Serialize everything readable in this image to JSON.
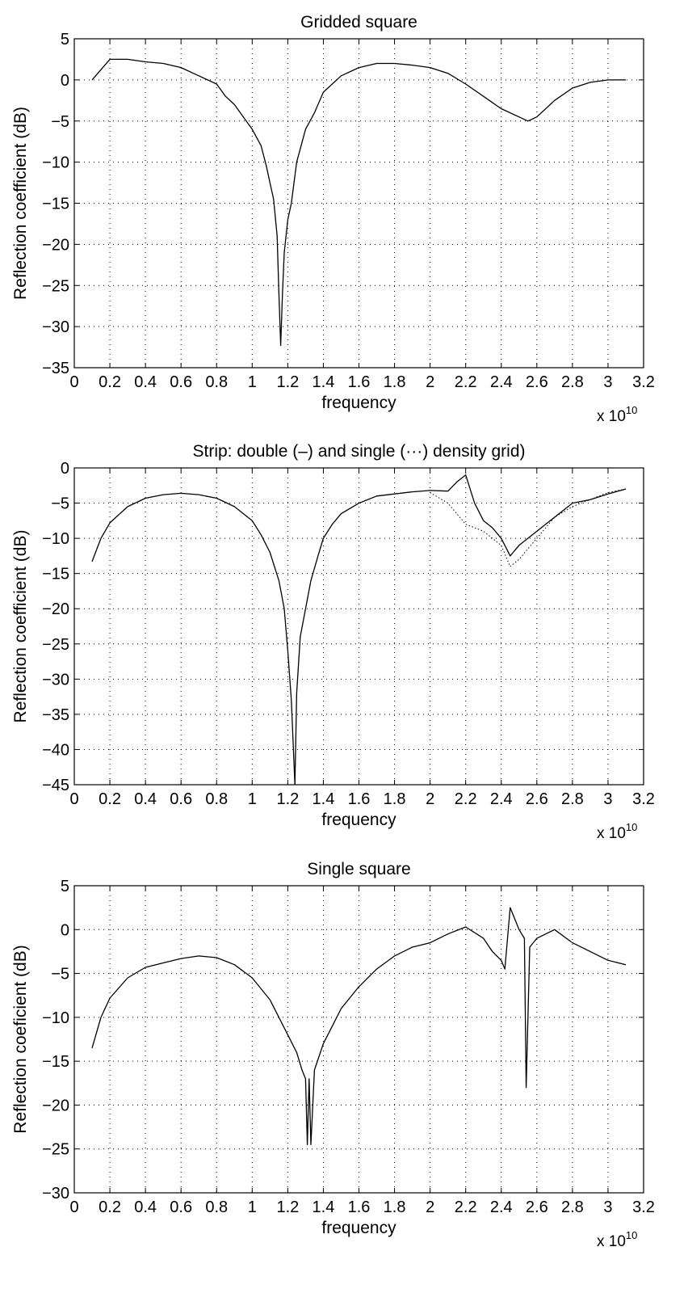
{
  "chart_data": [
    {
      "type": "line",
      "title": "Gridded square",
      "xlabel": "frequency",
      "ylabel": "Reflection coefficient (dB)",
      "x_multiplier": "x 10",
      "x_multiplier_exponent": "10",
      "xlim": [
        0,
        3.2
      ],
      "ylim": [
        -35,
        5
      ],
      "xticks": [
        "0",
        "0.2",
        "0.4",
        "0.6",
        "0.8",
        "1",
        "1.2",
        "1.4",
        "1.6",
        "1.8",
        "2",
        "2.2",
        "2.4",
        "2.6",
        "2.8",
        "3",
        "3.2"
      ],
      "yticks": [
        "5",
        "0",
        "−5",
        "−10",
        "−15",
        "−20",
        "−25",
        "−30",
        "−35"
      ],
      "grid": true,
      "series": [
        {
          "style": "solid",
          "points": [
            [
              0.1,
              0
            ],
            [
              0.2,
              2.5
            ],
            [
              0.3,
              2.5
            ],
            [
              0.4,
              2.2
            ],
            [
              0.5,
              2
            ],
            [
              0.6,
              1.5
            ],
            [
              0.7,
              0.5
            ],
            [
              0.8,
              -0.5
            ],
            [
              0.85,
              -2
            ],
            [
              0.9,
              -3
            ],
            [
              0.95,
              -4.5
            ],
            [
              1.0,
              -6
            ],
            [
              1.05,
              -8
            ],
            [
              1.08,
              -10.5
            ],
            [
              1.1,
              -12.5
            ],
            [
              1.12,
              -14.5
            ],
            [
              1.14,
              -19
            ],
            [
              1.15,
              -26
            ],
            [
              1.16,
              -32.3
            ],
            [
              1.17,
              -26
            ],
            [
              1.18,
              -21
            ],
            [
              1.2,
              -17
            ],
            [
              1.22,
              -15
            ],
            [
              1.25,
              -10
            ],
            [
              1.3,
              -6
            ],
            [
              1.35,
              -4
            ],
            [
              1.4,
              -1.5
            ],
            [
              1.5,
              0.5
            ],
            [
              1.6,
              1.5
            ],
            [
              1.7,
              2
            ],
            [
              1.8,
              2
            ],
            [
              1.9,
              1.8
            ],
            [
              2.0,
              1.5
            ],
            [
              2.1,
              0.8
            ],
            [
              2.2,
              -0.5
            ],
            [
              2.3,
              -2
            ],
            [
              2.4,
              -3.5
            ],
            [
              2.5,
              -4.5
            ],
            [
              2.55,
              -5
            ],
            [
              2.6,
              -4.5
            ],
            [
              2.7,
              -2.5
            ],
            [
              2.8,
              -1
            ],
            [
              2.9,
              -0.3
            ],
            [
              3.0,
              0
            ],
            [
              3.1,
              0
            ]
          ]
        }
      ]
    },
    {
      "type": "line",
      "title": "Strip: double (–) and single (···) density grid)",
      "xlabel": "frequency",
      "ylabel": "Reflection coefficient (dB)",
      "x_multiplier": "x 10",
      "x_multiplier_exponent": "10",
      "xlim": [
        0,
        3.2
      ],
      "ylim": [
        -45,
        0
      ],
      "xticks": [
        "0",
        "0.2",
        "0.4",
        "0.6",
        "0.8",
        "1",
        "1.2",
        "1.4",
        "1.6",
        "1.8",
        "2",
        "2.2",
        "2.4",
        "2.6",
        "2.8",
        "3",
        "3.2"
      ],
      "yticks": [
        "0",
        "−5",
        "−10",
        "−15",
        "−20",
        "−25",
        "−30",
        "−35",
        "−40",
        "−45"
      ],
      "grid": true,
      "series": [
        {
          "style": "solid",
          "points": [
            [
              0.1,
              -13.3
            ],
            [
              0.15,
              -10
            ],
            [
              0.2,
              -7.8
            ],
            [
              0.3,
              -5.5
            ],
            [
              0.4,
              -4.3
            ],
            [
              0.5,
              -3.8
            ],
            [
              0.6,
              -3.6
            ],
            [
              0.7,
              -3.8
            ],
            [
              0.8,
              -4.3
            ],
            [
              0.9,
              -5.5
            ],
            [
              1.0,
              -7.5
            ],
            [
              1.05,
              -9.5
            ],
            [
              1.1,
              -12
            ],
            [
              1.15,
              -16
            ],
            [
              1.18,
              -20
            ],
            [
              1.2,
              -26
            ],
            [
              1.22,
              -33
            ],
            [
              1.24,
              -45
            ],
            [
              1.25,
              -32
            ],
            [
              1.27,
              -24
            ],
            [
              1.3,
              -20
            ],
            [
              1.33,
              -16
            ],
            [
              1.37,
              -12.5
            ],
            [
              1.4,
              -10
            ],
            [
              1.45,
              -8
            ],
            [
              1.5,
              -6.5
            ],
            [
              1.6,
              -5
            ],
            [
              1.7,
              -4
            ],
            [
              1.8,
              -3.7
            ],
            [
              1.9,
              -3.4
            ],
            [
              2.0,
              -3.2
            ],
            [
              2.1,
              -3.3
            ],
            [
              2.15,
              -2
            ],
            [
              2.2,
              -1
            ],
            [
              2.25,
              -5
            ],
            [
              2.3,
              -7.5
            ],
            [
              2.35,
              -8.5
            ],
            [
              2.4,
              -10
            ],
            [
              2.45,
              -12.5
            ],
            [
              2.5,
              -11
            ],
            [
              2.6,
              -9
            ],
            [
              2.7,
              -7
            ],
            [
              2.8,
              -5
            ],
            [
              2.9,
              -4.5
            ],
            [
              3.0,
              -3.7
            ],
            [
              3.1,
              -3
            ]
          ]
        },
        {
          "style": "dotted",
          "points": [
            [
              2.0,
              -3.5
            ],
            [
              2.1,
              -5
            ],
            [
              2.2,
              -8
            ],
            [
              2.3,
              -9
            ],
            [
              2.4,
              -11
            ],
            [
              2.45,
              -14
            ],
            [
              2.5,
              -13
            ],
            [
              2.6,
              -10
            ],
            [
              2.7,
              -7
            ],
            [
              2.8,
              -5.5
            ],
            [
              2.9,
              -4.5
            ],
            [
              3.0,
              -3.5
            ],
            [
              3.1,
              -3
            ]
          ]
        }
      ]
    },
    {
      "type": "line",
      "title": "Single square",
      "xlabel": "frequency",
      "ylabel": "Reflection coeficient (dB)",
      "x_multiplier": "x 10",
      "x_multiplier_exponent": "10",
      "xlim": [
        0,
        3.2
      ],
      "ylim": [
        -30,
        5
      ],
      "xticks": [
        "0",
        "0.2",
        "0.4",
        "0.6",
        "0.8",
        "1",
        "1.2",
        "1.4",
        "1.6",
        "1.8",
        "2",
        "2.2",
        "2.4",
        "2.6",
        "2.8",
        "3",
        "3.2"
      ],
      "yticks": [
        "5",
        "0",
        "−5",
        "−10",
        "−15",
        "−20",
        "−25",
        "−30"
      ],
      "grid": true,
      "series": [
        {
          "style": "solid",
          "points": [
            [
              0.1,
              -13.5
            ],
            [
              0.15,
              -10
            ],
            [
              0.2,
              -7.8
            ],
            [
              0.3,
              -5.5
            ],
            [
              0.4,
              -4.3
            ],
            [
              0.5,
              -3.8
            ],
            [
              0.6,
              -3.3
            ],
            [
              0.7,
              -3
            ],
            [
              0.8,
              -3.2
            ],
            [
              0.9,
              -4
            ],
            [
              1.0,
              -5.5
            ],
            [
              1.1,
              -8
            ],
            [
              1.15,
              -10
            ],
            [
              1.2,
              -12
            ],
            [
              1.25,
              -14
            ],
            [
              1.28,
              -16
            ],
            [
              1.3,
              -17
            ],
            [
              1.31,
              -24.5
            ],
            [
              1.32,
              -17
            ],
            [
              1.33,
              -24.5
            ],
            [
              1.35,
              -16
            ],
            [
              1.4,
              -13
            ],
            [
              1.45,
              -11
            ],
            [
              1.5,
              -9
            ],
            [
              1.6,
              -6.5
            ],
            [
              1.7,
              -4.5
            ],
            [
              1.8,
              -3
            ],
            [
              1.9,
              -2
            ],
            [
              2.0,
              -1.5
            ],
            [
              2.1,
              -0.5
            ],
            [
              2.2,
              0.3
            ],
            [
              2.3,
              -1
            ],
            [
              2.35,
              -2.5
            ],
            [
              2.4,
              -3.5
            ],
            [
              2.42,
              -4.5
            ],
            [
              2.45,
              2.5
            ],
            [
              2.5,
              0
            ],
            [
              2.53,
              -1
            ],
            [
              2.54,
              -18
            ],
            [
              2.56,
              -2
            ],
            [
              2.6,
              -1
            ],
            [
              2.7,
              0
            ],
            [
              2.8,
              -1.5
            ],
            [
              2.9,
              -2.5
            ],
            [
              3.0,
              -3.5
            ],
            [
              3.1,
              -4
            ]
          ]
        }
      ]
    }
  ]
}
